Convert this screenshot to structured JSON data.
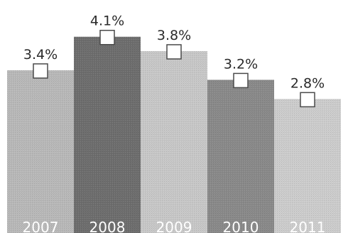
{
  "chart_data": {
    "type": "bar",
    "title": "",
    "xlabel": "",
    "ylabel": "",
    "categories": [
      "2007",
      "2008",
      "2009",
      "2010",
      "2011"
    ],
    "values": [
      3.4,
      4.1,
      3.8,
      3.2,
      2.8
    ],
    "value_labels": [
      "3.4%",
      "4.1%",
      "3.8%",
      "3.2%",
      "2.8%"
    ],
    "unit": "%",
    "ylim": [
      0,
      4.2
    ],
    "grid": false,
    "legend": "none",
    "colors": {
      "bars": [
        "#b9b9b9",
        "#6e6e6e",
        "#c8c8c8",
        "#8a8a8a",
        "#cdcdcd"
      ],
      "category_label": "#ffffff",
      "value_label": "#2a2a2a",
      "marker_fill": "#ffffff",
      "marker_stroke": "#4a4a4a"
    }
  }
}
